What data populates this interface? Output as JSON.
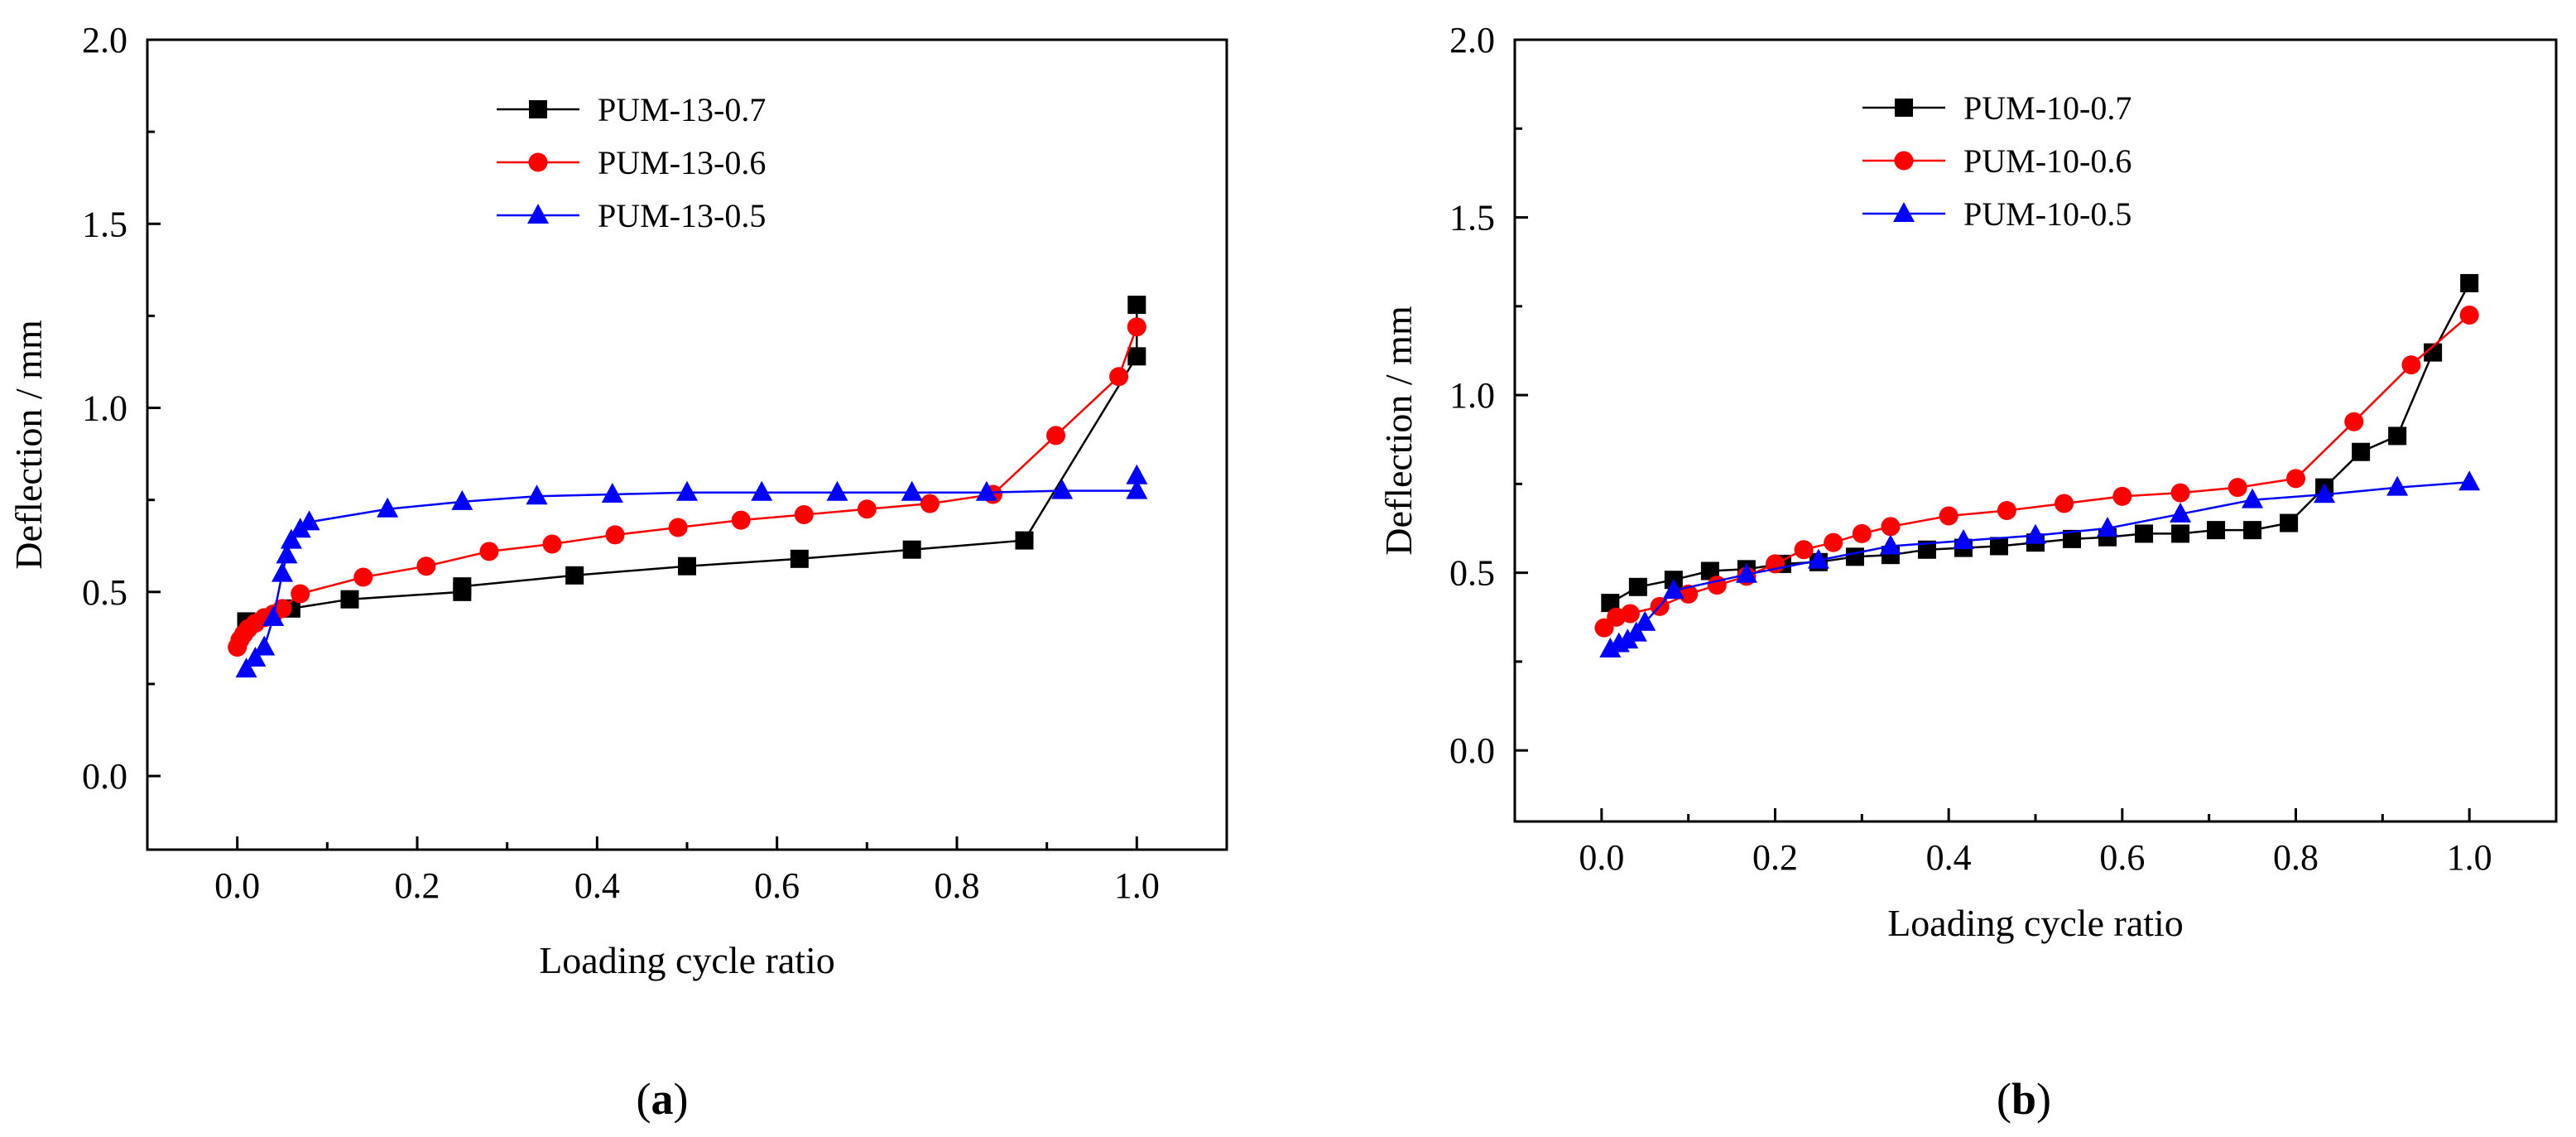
{
  "figure": {
    "panels": [
      {
        "id": "a",
        "label_open": "(",
        "label_letter": "a",
        "label_close": ")"
      },
      {
        "id": "b",
        "label_open": "(",
        "label_letter": "b",
        "label_close": ")"
      }
    ]
  },
  "chart_data": [
    {
      "type": "line",
      "panel": "a",
      "title": "",
      "xlabel": "Loading cycle ratio",
      "ylabel": "Deflection / mm",
      "xlim": [
        -0.1,
        1.1
      ],
      "ylim": [
        -0.2,
        2.0
      ],
      "xticks": [
        "0.0",
        "0.2",
        "0.4",
        "0.6",
        "0.8",
        "1.0"
      ],
      "xtick_values": [
        0.0,
        0.2,
        0.4,
        0.6,
        0.8,
        1.0
      ],
      "yticks": [
        "0.0",
        "0.5",
        "1.0",
        "1.5",
        "2.0"
      ],
      "ytick_values": [
        0.0,
        0.5,
        1.0,
        1.5,
        2.0
      ],
      "grid": false,
      "legend_position": "top-center",
      "series": [
        {
          "name": "PUM-13-0.7",
          "color": "#000000",
          "marker": "square",
          "x": [
            0.01,
            0.06,
            0.125,
            0.25,
            0.25,
            0.375,
            0.5,
            0.625,
            0.75,
            0.875,
            1.0,
            1.0
          ],
          "y": [
            0.42,
            0.455,
            0.48,
            0.5,
            0.515,
            0.545,
            0.57,
            0.59,
            0.615,
            0.64,
            1.14,
            1.28
          ]
        },
        {
          "name": "PUM-13-0.6",
          "color": "#ff0000",
          "marker": "circle",
          "x": [
            0.0,
            0.003,
            0.007,
            0.012,
            0.02,
            0.03,
            0.04,
            0.05,
            0.07,
            0.14,
            0.21,
            0.28,
            0.35,
            0.42,
            0.49,
            0.56,
            0.63,
            0.7,
            0.77,
            0.84,
            0.91,
            0.98,
            1.0
          ],
          "y": [
            0.35,
            0.37,
            0.385,
            0.4,
            0.415,
            0.43,
            0.44,
            0.455,
            0.495,
            0.54,
            0.57,
            0.61,
            0.63,
            0.655,
            0.675,
            0.695,
            0.71,
            0.725,
            0.74,
            0.765,
            0.925,
            1.085,
            1.22
          ]
        },
        {
          "name": "PUM-13-0.5",
          "color": "#0000ff",
          "marker": "triangle",
          "x": [
            0.01,
            0.02,
            0.03,
            0.04,
            0.05,
            0.055,
            0.06,
            0.07,
            0.08,
            0.167,
            0.25,
            0.333,
            0.417,
            0.5,
            0.583,
            0.667,
            0.75,
            0.833,
            0.917,
            1.0,
            1.0
          ],
          "y": [
            0.29,
            0.32,
            0.35,
            0.43,
            0.55,
            0.6,
            0.64,
            0.67,
            0.69,
            0.725,
            0.745,
            0.76,
            0.765,
            0.77,
            0.77,
            0.77,
            0.77,
            0.77,
            0.775,
            0.775,
            0.815
          ]
        }
      ]
    },
    {
      "type": "line",
      "panel": "b",
      "title": "",
      "xlabel": "Loading cycle ratio",
      "ylabel": "Deflection / mm",
      "xlim": [
        -0.1,
        1.1
      ],
      "ylim": [
        -0.2,
        2.0
      ],
      "xticks": [
        "0.0",
        "0.2",
        "0.4",
        "0.6",
        "0.8",
        "1.0"
      ],
      "xtick_values": [
        0.0,
        0.2,
        0.4,
        0.6,
        0.8,
        1.0
      ],
      "yticks": [
        "0.0",
        "0.5",
        "1.0",
        "1.5",
        "2.0"
      ],
      "ytick_values": [
        0.0,
        0.5,
        1.0,
        1.5,
        2.0
      ],
      "grid": false,
      "legend_position": "top-center",
      "series": [
        {
          "name": "PUM-10-0.7",
          "color": "#000000",
          "marker": "square",
          "x": [
            0.01,
            0.042,
            0.083,
            0.125,
            0.167,
            0.208,
            0.25,
            0.292,
            0.333,
            0.375,
            0.417,
            0.458,
            0.5,
            0.542,
            0.583,
            0.625,
            0.667,
            0.708,
            0.75,
            0.792,
            0.833,
            0.875,
            0.917,
            0.958,
            1.0
          ],
          "y": [
            0.415,
            0.46,
            0.48,
            0.505,
            0.51,
            0.525,
            0.53,
            0.545,
            0.55,
            0.565,
            0.57,
            0.575,
            0.585,
            0.595,
            0.6,
            0.61,
            0.61,
            0.62,
            0.62,
            0.64,
            0.74,
            0.84,
            0.885,
            1.12,
            1.315
          ]
        },
        {
          "name": "PUM-10-0.6",
          "color": "#ff0000",
          "marker": "circle",
          "x": [
            0.003,
            0.017,
            0.033,
            0.067,
            0.1,
            0.133,
            0.167,
            0.2,
            0.233,
            0.267,
            0.3,
            0.333,
            0.4,
            0.467,
            0.533,
            0.6,
            0.667,
            0.733,
            0.8,
            0.867,
            0.933,
            1.0
          ],
          "y": [
            0.345,
            0.375,
            0.385,
            0.405,
            0.44,
            0.465,
            0.49,
            0.525,
            0.565,
            0.585,
            0.61,
            0.63,
            0.66,
            0.675,
            0.695,
            0.715,
            0.725,
            0.74,
            0.765,
            0.925,
            1.085,
            1.225
          ]
        },
        {
          "name": "PUM-10-0.5",
          "color": "#0000ff",
          "marker": "triangle",
          "x": [
            0.01,
            0.02,
            0.03,
            0.04,
            0.05,
            0.083,
            0.167,
            0.25,
            0.333,
            0.417,
            0.5,
            0.583,
            0.667,
            0.75,
            0.833,
            0.917,
            1.0
          ],
          "y": [
            0.285,
            0.3,
            0.31,
            0.33,
            0.36,
            0.45,
            0.495,
            0.535,
            0.575,
            0.59,
            0.605,
            0.625,
            0.665,
            0.705,
            0.72,
            0.74,
            0.755
          ]
        }
      ]
    }
  ]
}
